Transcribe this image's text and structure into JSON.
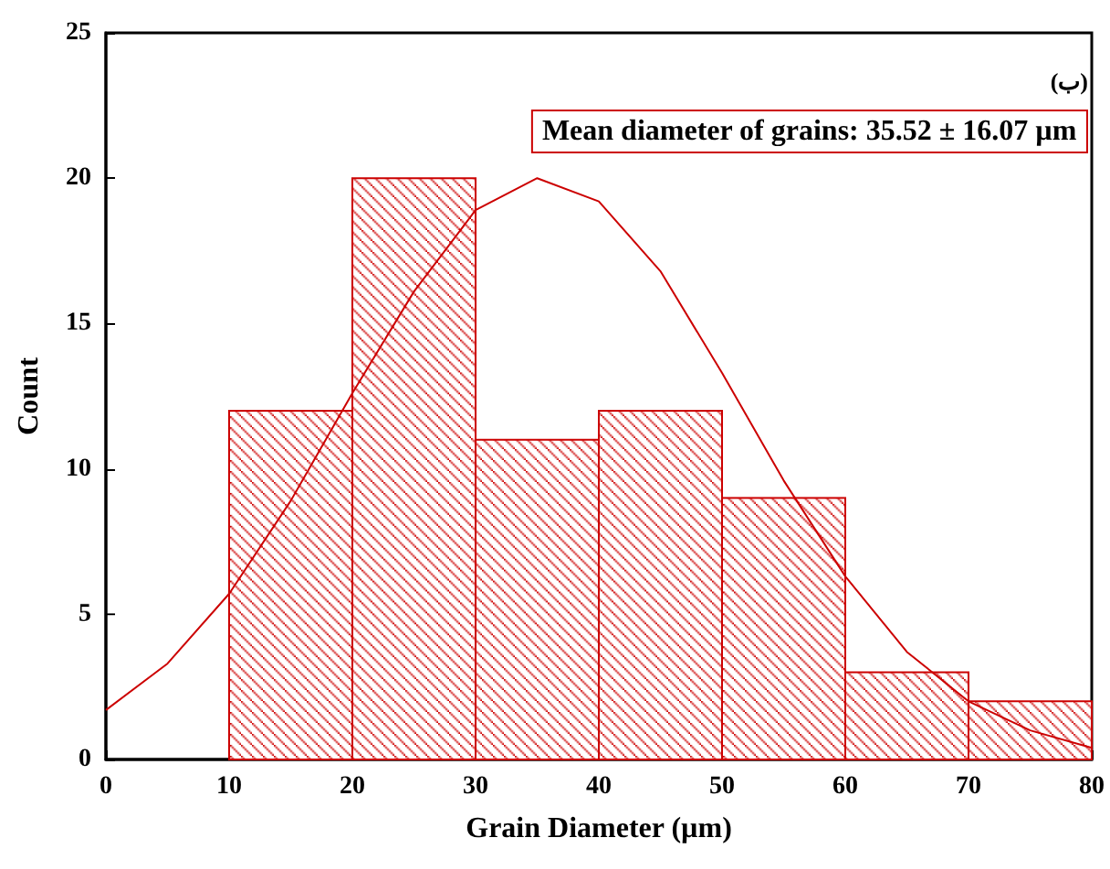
{
  "chart_data": {
    "type": "histogram",
    "xlabel": "Grain Diameter (µm)",
    "ylabel": "Count",
    "bins": [
      10,
      20,
      30,
      40,
      50,
      60,
      70,
      80
    ],
    "values": [
      12,
      20,
      11,
      12,
      9,
      3,
      2
    ],
    "color": "#cc0000",
    "series": [
      {
        "type": "line",
        "color": "#cc0000",
        "x": [
          0,
          5,
          10,
          15,
          20,
          25,
          30,
          35,
          40,
          45,
          50,
          55,
          60,
          65,
          70,
          75,
          80
        ],
        "values": [
          1.7,
          3.3,
          5.7,
          8.9,
          12.6,
          16.1,
          18.9,
          20.0,
          19.2,
          16.8,
          13.3,
          9.6,
          6.3,
          3.7,
          2.0,
          1.0,
          0.4
        ]
      }
    ],
    "xlim": [
      0,
      80
    ],
    "xticks": [
      0,
      10,
      20,
      30,
      40,
      50,
      60,
      70,
      80
    ],
    "ylim": [
      0,
      25
    ],
    "yticks": [
      0,
      5,
      10,
      15,
      20,
      25
    ],
    "annotations": [
      "(ب)",
      "Mean diameter of grains: 35.52 ± 16.07 µm"
    ],
    "grid": false
  }
}
